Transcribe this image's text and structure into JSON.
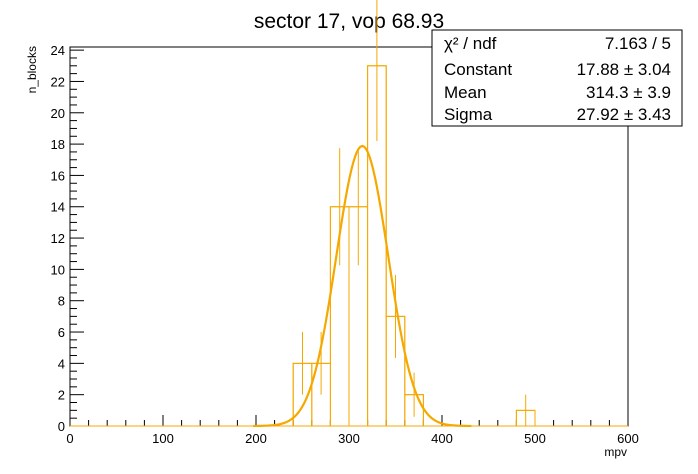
{
  "chart_data": {
    "type": "bar",
    "title": "sector 17, vop 68.93",
    "xlabel": "mpv",
    "ylabel": "n_blocks",
    "xlim": [
      0,
      600
    ],
    "ylim": [
      0,
      24.2
    ],
    "x_ticks": [
      0,
      100,
      200,
      300,
      400,
      500,
      600
    ],
    "y_ticks": [
      0,
      2,
      4,
      6,
      8,
      10,
      12,
      14,
      16,
      18,
      20,
      22,
      24
    ],
    "bin_width": 20,
    "grid": false,
    "histogram_color": "#f5a800",
    "fit_color": "#f5a800",
    "bins": [
      {
        "x_low": 240,
        "x_high": 260,
        "count": 4,
        "error": 2
      },
      {
        "x_low": 260,
        "x_high": 280,
        "count": 4,
        "error": 2
      },
      {
        "x_low": 280,
        "x_high": 300,
        "count": 14,
        "error": 3.74
      },
      {
        "x_low": 300,
        "x_high": 320,
        "count": 14,
        "error": 3.74
      },
      {
        "x_low": 320,
        "x_high": 340,
        "count": 23,
        "error": 4.8
      },
      {
        "x_low": 340,
        "x_high": 360,
        "count": 7,
        "error": 2.65
      },
      {
        "x_low": 360,
        "x_high": 380,
        "count": 2,
        "error": 1.41
      },
      {
        "x_low": 480,
        "x_high": 500,
        "count": 1,
        "error": 1
      }
    ],
    "fit": {
      "function": "gaus",
      "constant": 17.88,
      "mean": 314.3,
      "sigma": 27.92
    }
  },
  "stats": {
    "rows": [
      {
        "label": "χ² / ndf",
        "value": "7.163 / 5"
      },
      {
        "label": "Constant",
        "value": "17.88 ± 3.04"
      },
      {
        "label": "Mean",
        "value": "314.3 ± 3.9"
      },
      {
        "label": "Sigma",
        "value": "27.92 ± 3.43"
      }
    ]
  }
}
